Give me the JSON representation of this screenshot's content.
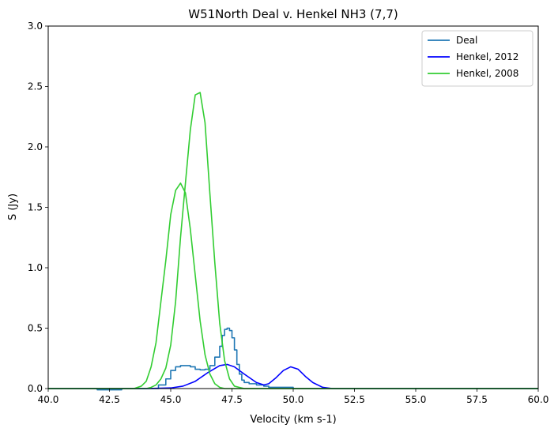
{
  "chart_data": {
    "type": "line",
    "title": "W51North Deal v. Henkel NH3 (7,7)",
    "xlabel": "Velocity (km s-1)",
    "ylabel": "S (Jy)",
    "xlim": [
      40.0,
      60.0
    ],
    "ylim": [
      0.0,
      3.0
    ],
    "xticks": [
      "40.0",
      "42.5",
      "45.0",
      "47.5",
      "50.0",
      "52.5",
      "55.0",
      "57.5",
      "60.0"
    ],
    "yticks": [
      "0.0",
      "0.5",
      "1.0",
      "1.5",
      "2.0",
      "2.5",
      "3.0"
    ],
    "grid": false,
    "legend_position": "top-right",
    "series": [
      {
        "name": "Deal",
        "color": "#1f77b4",
        "style": "step",
        "x": [
          40.0,
          41.0,
          42.0,
          43.0,
          44.0,
          44.5,
          44.8,
          45.0,
          45.2,
          45.4,
          45.6,
          45.8,
          46.0,
          46.2,
          46.4,
          46.6,
          46.8,
          47.0,
          47.1,
          47.2,
          47.3,
          47.4,
          47.5,
          47.6,
          47.7,
          47.8,
          47.9,
          48.0,
          48.2,
          48.5,
          48.8,
          49.0,
          49.5,
          50.0,
          51.0,
          52.0,
          53.0,
          55.0,
          57.5,
          60.0
        ],
        "y": [
          0.0,
          0.0,
          -0.01,
          0.0,
          0.0,
          0.03,
          0.08,
          0.15,
          0.18,
          0.19,
          0.19,
          0.18,
          0.16,
          0.155,
          0.16,
          0.19,
          0.26,
          0.35,
          0.44,
          0.49,
          0.5,
          0.48,
          0.42,
          0.32,
          0.2,
          0.12,
          0.07,
          0.05,
          0.04,
          0.03,
          0.02,
          0.01,
          0.01,
          0.0,
          0.0,
          0.0,
          0.0,
          0.0,
          0.0,
          0.0
        ]
      },
      {
        "name": "Henkel, 2012",
        "color": "#0000ff",
        "style": "line",
        "x": [
          40.0,
          44.0,
          45.0,
          45.5,
          46.0,
          46.5,
          47.0,
          47.3,
          47.6,
          48.0,
          48.5,
          48.8,
          49.0,
          49.3,
          49.6,
          49.9,
          50.2,
          50.5,
          50.8,
          51.2,
          51.6,
          52.0,
          60.0
        ],
        "y": [
          0.0,
          0.0,
          0.005,
          0.02,
          0.06,
          0.13,
          0.19,
          0.2,
          0.18,
          0.12,
          0.05,
          0.03,
          0.04,
          0.09,
          0.15,
          0.18,
          0.16,
          0.1,
          0.05,
          0.01,
          0.0,
          0.0,
          0.0
        ]
      },
      {
        "name": "Henkel, 2008",
        "color": "#32cd32",
        "style": "line",
        "x": [
          40.0,
          43.5,
          43.8,
          44.0,
          44.2,
          44.4,
          44.6,
          44.8,
          45.0,
          45.2,
          45.4,
          45.6,
          45.8,
          46.0,
          46.2,
          46.4,
          46.6,
          46.8,
          47.0,
          47.2,
          47.4,
          47.6,
          48.0,
          60.0
        ],
        "y": [
          0.0,
          0.0,
          0.02,
          0.06,
          0.18,
          0.38,
          0.72,
          1.06,
          1.44,
          1.64,
          1.7,
          1.62,
          1.32,
          0.94,
          0.56,
          0.28,
          0.12,
          0.04,
          0.01,
          0.0,
          0.0,
          0.0,
          0.0,
          0.0
        ]
      },
      {
        "name": "Henkel, 2008",
        "color": "#32cd32",
        "style": "line",
        "x": [
          40.0,
          44.0,
          44.2,
          44.4,
          44.6,
          44.8,
          45.0,
          45.2,
          45.4,
          45.6,
          45.8,
          46.0,
          46.2,
          46.4,
          46.6,
          46.8,
          47.0,
          47.2,
          47.4,
          47.6,
          47.8,
          48.0,
          48.4,
          60.0
        ],
        "y": [
          0.0,
          0.0,
          0.01,
          0.03,
          0.08,
          0.17,
          0.36,
          0.72,
          1.25,
          1.7,
          2.14,
          2.43,
          2.45,
          2.2,
          1.61,
          1.04,
          0.54,
          0.23,
          0.08,
          0.02,
          0.01,
          0.0,
          0.0,
          0.0
        ]
      }
    ],
    "legend": [
      {
        "label": "Deal",
        "color": "#1f77b4"
      },
      {
        "label": "Henkel, 2012",
        "color": "#0000ff"
      },
      {
        "label": "Henkel, 2008",
        "color": "#32cd32"
      }
    ]
  }
}
